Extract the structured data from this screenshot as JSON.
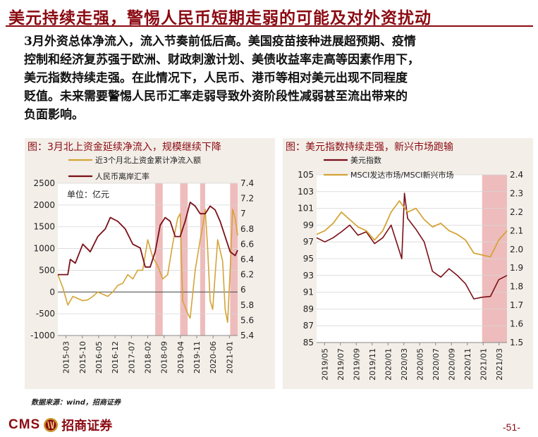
{
  "title": "美元持续走强，警惕人民币短期走弱的可能及对外资扰动",
  "paragraph": [
    "3月外资总体净流入，流入节奏前低后高。美国疫苗接种进展超预期、疫情",
    "控制和经济复苏强于欧洲、财政刺激计划、美债收益率走高等因素作用下，",
    "美元指数持续走强。在此情况下，人民币、港币等相对美元出现不同程度",
    "贬值。未来需要警惕人民币汇率走弱导致外资阶段性减弱甚至流出带来的",
    "负面影响。"
  ],
  "source": "数据来源：wind，招商证券",
  "logo": {
    "cms": "CMS",
    "cn": "招商证券"
  },
  "page_number": "-51-",
  "colors": {
    "brand": "#8b0a12",
    "gold": "#d4a437",
    "dark_red": "#7a0f18",
    "shade": "#e8a6a6",
    "panel_bg": "#f3eee8"
  },
  "chart_data": [
    {
      "type": "line",
      "title": "图：3月北上资金延续净流入，规模继续下降",
      "unit_note": "单位：亿元",
      "x_tick_labels": [
        "2015-03",
        "2015-10",
        "2016-05",
        "2016-12",
        "2017-07",
        "2018-02",
        "2018-09",
        "2019-04",
        "2019-11",
        "2020-06",
        "2021-01"
      ],
      "x_range": [
        "2015-03",
        "2021-03"
      ],
      "left_axis": {
        "ticks": [
          "2500",
          "2000",
          "1500",
          "1000",
          "500",
          "0",
          "-500",
          "-1000"
        ],
        "ylim": [
          -1000,
          2500
        ]
      },
      "right_axis": {
        "ticks": [
          "7.4",
          "7.2",
          "7",
          "6.8",
          "6.6",
          "6.4",
          "6.2",
          "6",
          "5.8",
          "5.6",
          "5.4"
        ],
        "ylim": [
          5.4,
          7.4
        ]
      },
      "legend_position": "top",
      "shaded_periods": [
        [
          "2018-06",
          "2018-09"
        ],
        [
          "2019-04",
          "2019-07"
        ],
        [
          "2019-12",
          "2020-02"
        ],
        [
          "2020-12",
          "2021-03"
        ]
      ],
      "series": [
        {
          "name": "近3个月北上资金累计净流入额",
          "axis": "left",
          "color": "#d4a437",
          "x": [
            "2015-03",
            "2015-05",
            "2015-07",
            "2015-09",
            "2015-11",
            "2016-01",
            "2016-03",
            "2016-05",
            "2016-07",
            "2016-09",
            "2016-11",
            "2017-01",
            "2017-03",
            "2017-05",
            "2017-07",
            "2017-09",
            "2017-11",
            "2018-01",
            "2018-03",
            "2018-05",
            "2018-07",
            "2018-09",
            "2018-11",
            "2019-01",
            "2019-03",
            "2019-04",
            "2019-05",
            "2019-07",
            "2019-08",
            "2019-10",
            "2019-12",
            "2020-01",
            "2020-02",
            "2020-03",
            "2020-04",
            "2020-05",
            "2020-07",
            "2020-09",
            "2020-10",
            "2020-11",
            "2020-12",
            "2021-01",
            "2021-02",
            "2021-03"
          ],
          "values": [
            400,
            100,
            -300,
            -100,
            -150,
            -200,
            -180,
            -100,
            0,
            -50,
            -100,
            0,
            150,
            200,
            400,
            300,
            500,
            500,
            1200,
            800,
            600,
            300,
            400,
            1100,
            1700,
            1800,
            -200,
            -500,
            -600,
            500,
            1200,
            1500,
            1900,
            1000,
            -200,
            -400,
            1200,
            700,
            -400,
            -700,
            500,
            1900,
            1700,
            1300
          ]
        },
        {
          "name": "人民币离岸汇率",
          "axis": "right",
          "color": "#7a0f18",
          "x": [
            "2015-03",
            "2015-07",
            "2015-08",
            "2015-10",
            "2016-01",
            "2016-04",
            "2016-07",
            "2016-10",
            "2016-12",
            "2017-03",
            "2017-06",
            "2017-09",
            "2017-12",
            "2018-02",
            "2018-04",
            "2018-06",
            "2018-08",
            "2018-10",
            "2018-12",
            "2019-02",
            "2019-04",
            "2019-06",
            "2019-08",
            "2019-10",
            "2019-12",
            "2020-02",
            "2020-04",
            "2020-06",
            "2020-08",
            "2020-10",
            "2020-12",
            "2021-02",
            "2021-03"
          ],
          "values": [
            6.2,
            6.2,
            6.4,
            6.35,
            6.6,
            6.5,
            6.7,
            6.8,
            6.95,
            6.9,
            6.8,
            6.6,
            6.55,
            6.3,
            6.3,
            6.5,
            6.85,
            6.95,
            6.9,
            6.7,
            6.7,
            6.9,
            7.15,
            7.1,
            7.0,
            7.0,
            7.1,
            7.05,
            6.9,
            6.7,
            6.5,
            6.45,
            6.52
          ]
        }
      ]
    },
    {
      "type": "line",
      "title": "图：美元指数持续走强，新兴市场跑输",
      "x_tick_labels": [
        "2019/05",
        "2019/07",
        "2019/09",
        "2019/11",
        "2020/01",
        "2020/03",
        "2020/05",
        "2020/07",
        "2020/09",
        "2020/11",
        "2021/01",
        "2021/03"
      ],
      "x_range": [
        "2019/05",
        "2021/04"
      ],
      "left_axis": {
        "ticks": [
          "105",
          "103",
          "101",
          "99",
          "97",
          "95",
          "93",
          "91",
          "89",
          "87",
          "85"
        ],
        "ylim": [
          85,
          105
        ]
      },
      "right_axis": {
        "ticks": [
          "2.4",
          "2.3",
          "2.2",
          "2.1",
          "2.0",
          "1.9",
          "1.8",
          "1.7",
          "1.6",
          "1.5"
        ],
        "ylim": [
          1.5,
          2.4
        ]
      },
      "legend_position": "top",
      "shaded_periods": [
        [
          "2021-01",
          "2021-04"
        ]
      ],
      "series": [
        {
          "name": "美元指数",
          "axis": "left",
          "color": "#7a0f18",
          "x": [
            "2019-05",
            "2019-06",
            "2019-07",
            "2019-08",
            "2019-09",
            "2019-10",
            "2019-11",
            "2019-12",
            "2020-01",
            "2020-02",
            "2020-03-10",
            "2020-03-20",
            "2020-04",
            "2020-05",
            "2020-06",
            "2020-07",
            "2020-08",
            "2020-09",
            "2020-10",
            "2020-11",
            "2020-12",
            "2021-01",
            "2021-02",
            "2021-03",
            "2021-04"
          ],
          "values": [
            97.5,
            97.0,
            97.5,
            98.2,
            99.0,
            97.8,
            98.2,
            96.8,
            97.5,
            99.0,
            95.0,
            102.8,
            99.8,
            98.5,
            97.0,
            93.5,
            92.8,
            93.8,
            93.0,
            92.0,
            90.2,
            90.4,
            90.5,
            92.5,
            93.0
          ]
        },
        {
          "name": "MSCI发达市场/MSCI新兴市场",
          "axis": "right",
          "color": "#d4a437",
          "x": [
            "2019-05",
            "2019-06",
            "2019-07",
            "2019-08",
            "2019-09",
            "2019-10",
            "2019-11",
            "2019-12",
            "2020-01",
            "2020-02",
            "2020-03",
            "2020-04",
            "2020-05",
            "2020-06",
            "2020-07",
            "2020-08",
            "2020-09",
            "2020-10",
            "2020-11",
            "2020-12",
            "2021-01",
            "2021-02",
            "2021-03",
            "2021-04"
          ],
          "values": [
            2.08,
            2.1,
            2.14,
            2.2,
            2.16,
            2.12,
            2.1,
            2.05,
            2.1,
            2.2,
            2.26,
            2.2,
            2.22,
            2.16,
            2.12,
            2.14,
            2.1,
            2.08,
            2.05,
            1.98,
            1.97,
            1.96,
            2.05,
            2.1
          ]
        }
      ]
    }
  ]
}
